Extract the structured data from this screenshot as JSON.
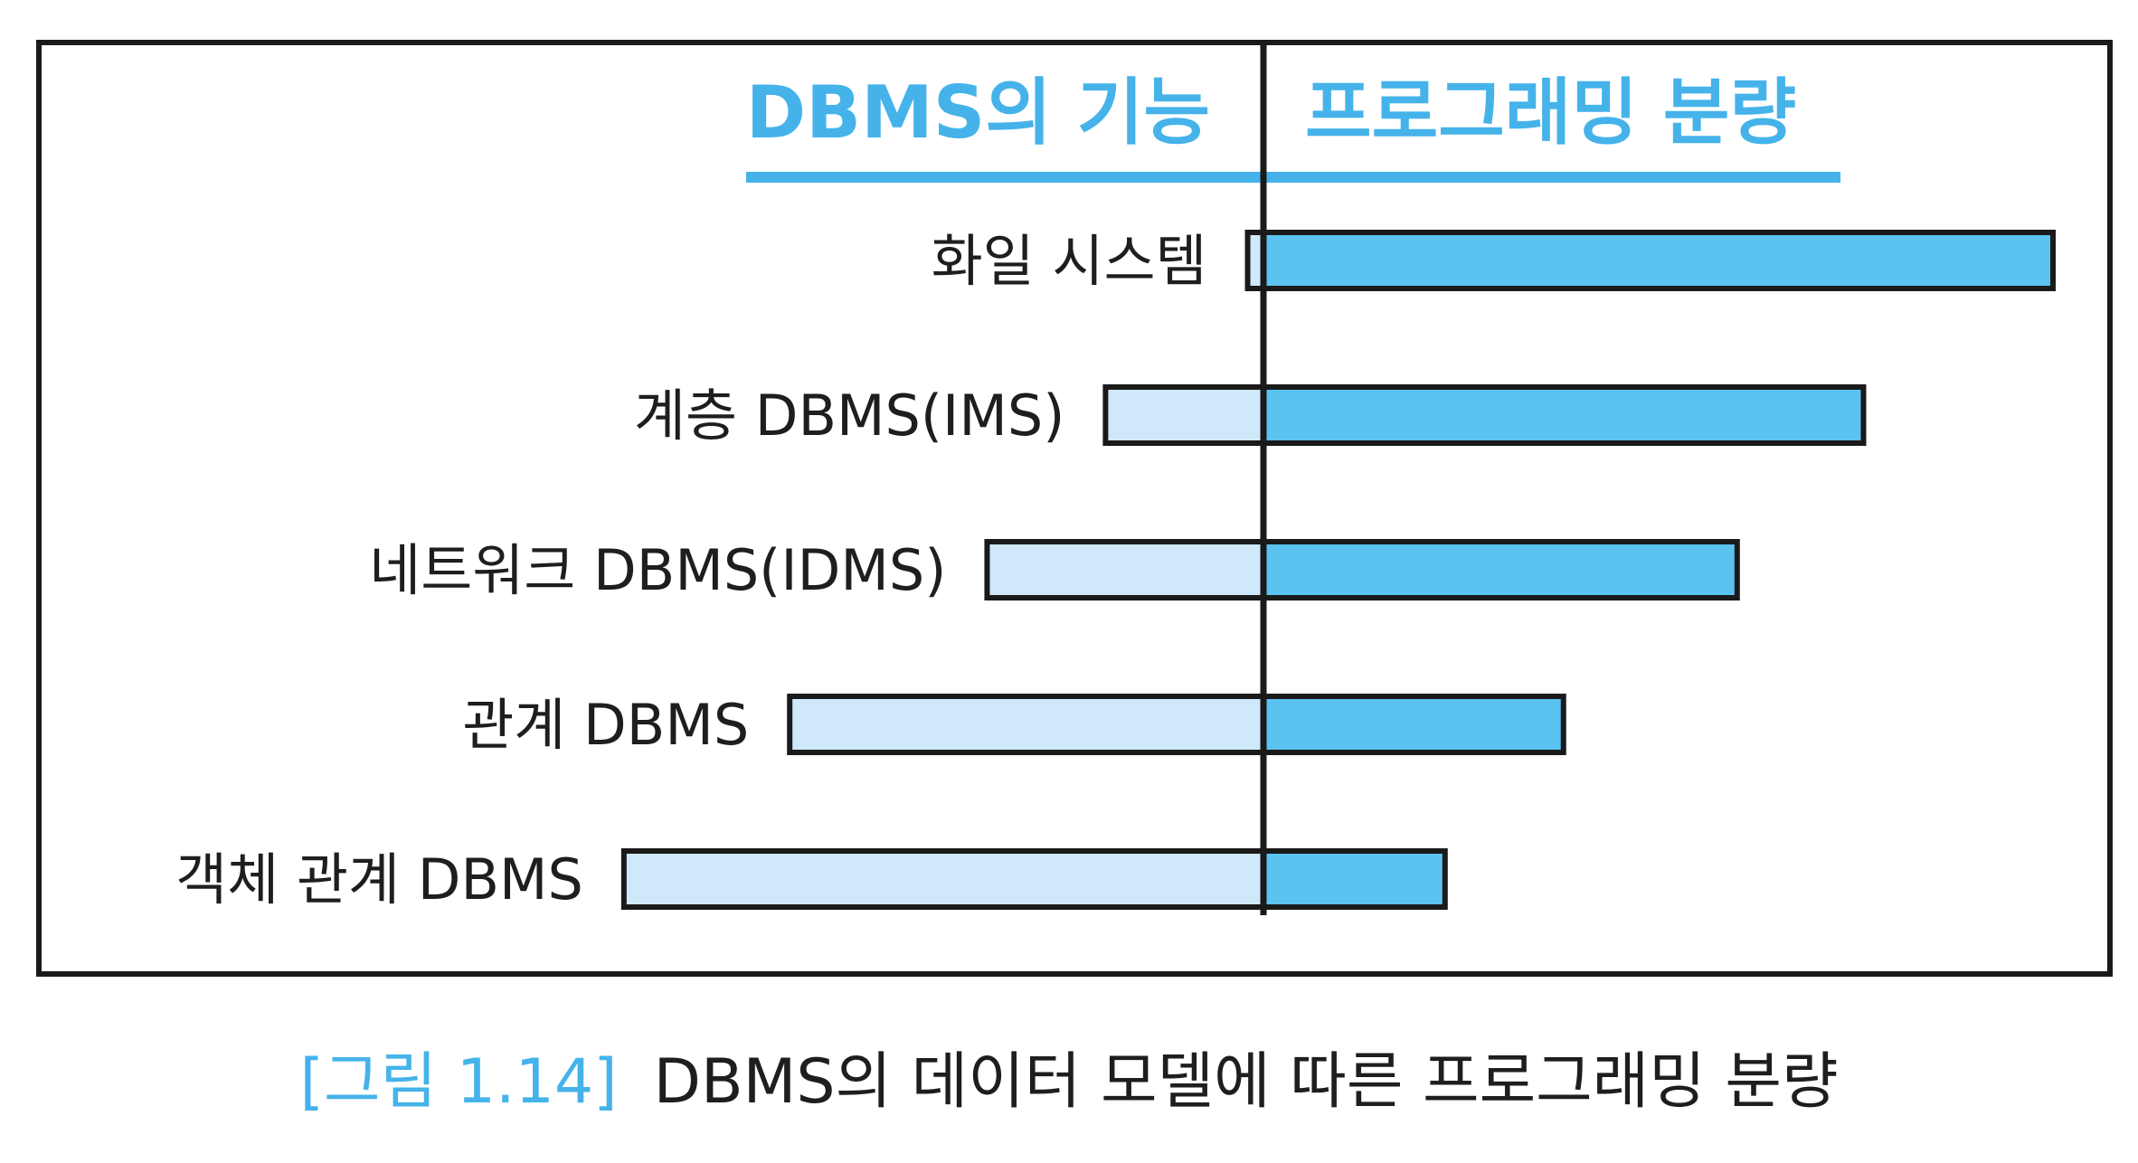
{
  "chart_data": {
    "type": "bar",
    "orientation": "horizontal-diverging",
    "left_header": "DBMS의 기능",
    "right_header": "프로그래밍 분량",
    "categories": [
      "화일 시스템",
      "계층 DBMS(IMS)",
      "네트워크 DBMS(IDMS)",
      "관계 DBMS",
      "객체 관계 DBMS"
    ],
    "series": [
      {
        "name": "DBMS의 기능",
        "values": [
          0.2,
          2.0,
          3.5,
          6.0,
          8.1
        ]
      },
      {
        "name": "프로그래밍 분량",
        "values": [
          10.0,
          7.6,
          6.0,
          3.8,
          2.3
        ]
      }
    ],
    "xlim": [
      0,
      10
    ],
    "grid": false,
    "colors": {
      "left_bar": "#cfe9fb",
      "right_bar": "#5bc3ef",
      "header_text": "#45b3ea",
      "header_rule": "#45b3ea",
      "frame": "#1a1a1a"
    }
  },
  "caption": {
    "label": "[그림 1.14]",
    "text": "DBMS의 데이터 모델에 따른 프로그래밍 분량"
  }
}
